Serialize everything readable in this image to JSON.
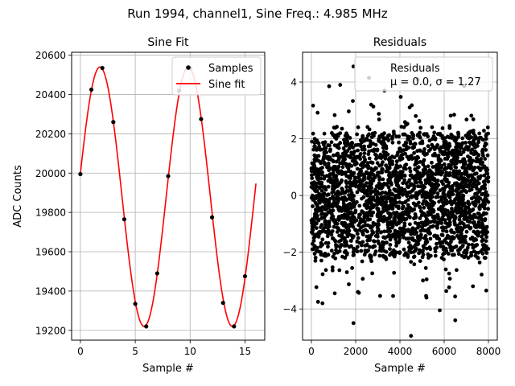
{
  "figure": {
    "suptitle": "Run 1994, channel1, Sine Freq.: 4.985 MHz"
  },
  "chart_data": [
    {
      "type": "scatter+line",
      "title": "Sine Fit",
      "xlabel": "Sample #",
      "ylabel": "ADC Counts",
      "xlim": [
        -0.8,
        16.8
      ],
      "ylim": [
        19150,
        20615
      ],
      "xticks": [
        0,
        5,
        10,
        15
      ],
      "yticks": [
        19200,
        19400,
        19600,
        19800,
        20000,
        20200,
        20400,
        20600
      ],
      "grid": true,
      "legend": {
        "position": "upper-right",
        "entries": [
          "Samples",
          "Sine fit"
        ]
      },
      "samples": {
        "name": "Samples",
        "x": [
          0,
          1,
          2,
          3,
          4,
          5,
          6,
          7,
          8,
          9,
          10,
          11,
          12,
          13,
          14,
          15
        ],
        "y": [
          19995,
          20425,
          20535,
          20260,
          19765,
          19335,
          19220,
          19490,
          19985,
          20420,
          20535,
          20275,
          19775,
          19340,
          19220,
          19475
        ]
      },
      "fit": {
        "name": "Sine fit",
        "color": "#ff0000",
        "offset": 19880,
        "amplitude": 660,
        "period": 8.05,
        "phase": 0.18,
        "x_range": [
          0,
          16
        ]
      }
    },
    {
      "type": "scatter",
      "title": "Residuals",
      "xlabel": "Sample #",
      "ylabel": "",
      "xlim": [
        -400,
        8400
      ],
      "ylim": [
        -5.1,
        5.05
      ],
      "xticks": [
        0,
        2000,
        4000,
        6000,
        8000
      ],
      "yticks": [
        -4,
        -2,
        0,
        2,
        4
      ],
      "grid": true,
      "legend": {
        "position": "upper-right",
        "entries": [
          "Residuals",
          "μ = 0.0, σ = 1.27"
        ]
      },
      "series": {
        "name": "Residuals",
        "n_points": 8000,
        "x_range": [
          0,
          7999
        ],
        "mean": 0.0,
        "std": 1.27,
        "core_range": [
          -2.2,
          2.2
        ],
        "outliers": [
          {
            "x": 1900,
            "y": -4.5
          },
          {
            "x": 4500,
            "y": -4.95
          },
          {
            "x": 6500,
            "y": -4.4
          },
          {
            "x": 1900,
            "y": 4.55
          },
          {
            "x": 2600,
            "y": 4.15
          },
          {
            "x": 1300,
            "y": 3.9
          },
          {
            "x": 500,
            "y": -3.8
          },
          {
            "x": 300,
            "y": -3.75
          },
          {
            "x": 5800,
            "y": -4.05
          },
          {
            "x": 6200,
            "y": 4.0
          },
          {
            "x": 7300,
            "y": -3.2
          },
          {
            "x": 7900,
            "y": -3.35
          },
          {
            "x": 4800,
            "y": 4.1
          },
          {
            "x": 800,
            "y": 3.85
          },
          {
            "x": 3300,
            "y": 3.7
          },
          {
            "x": 6900,
            "y": 3.85
          },
          {
            "x": 2100,
            "y": -3.4
          },
          {
            "x": 5200,
            "y": -3.6
          }
        ]
      }
    }
  ]
}
